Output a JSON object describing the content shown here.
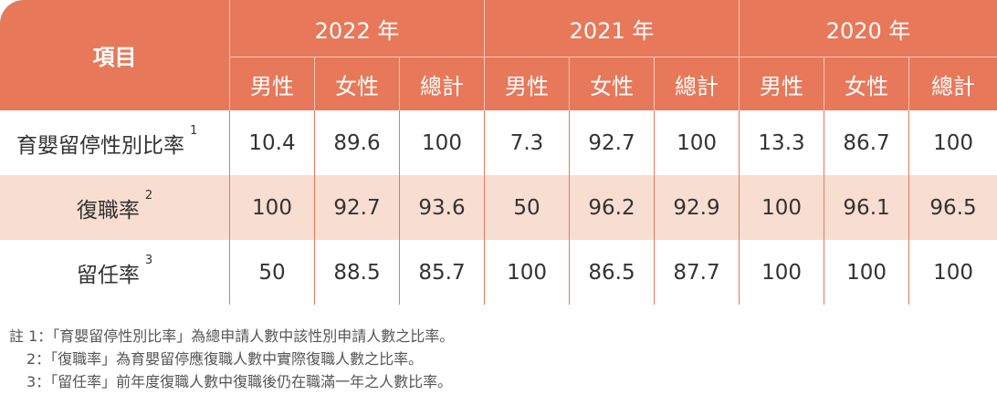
{
  "table": {
    "item_header": "項目",
    "years": [
      "2022 年",
      "2021 年",
      "2020 年"
    ],
    "sub_headers": [
      "男性",
      "女性",
      "總計"
    ],
    "rows": [
      {
        "label": "育嬰留停性別比率",
        "sup": "1",
        "values": [
          "10.4",
          "89.6",
          "100",
          "7.3",
          "92.7",
          "100",
          "13.3",
          "86.7",
          "100"
        ]
      },
      {
        "label": "復職率",
        "sup": "2",
        "values": [
          "100",
          "92.7",
          "93.6",
          "50",
          "96.2",
          "92.9",
          "100",
          "96.1",
          "96.5"
        ]
      },
      {
        "label": "留任率",
        "sup": "3",
        "values": [
          "50",
          "88.5",
          "85.7",
          "100",
          "86.5",
          "87.7",
          "100",
          "100",
          "100"
        ]
      }
    ]
  },
  "notes": [
    "註 1：「育嬰留停性別比率」為總申請人數中該性別申請人數之比率。",
    "2：「復職率」為育嬰留停應復職人數中實際復職人數之比率。",
    "3：「留任率」前年度復職人數中復職後仍在職滿一年之人數比率。"
  ],
  "colors": {
    "header_bg": "#e8785a",
    "alt_row_bg": "#f8ddd1",
    "text": "#333333"
  }
}
